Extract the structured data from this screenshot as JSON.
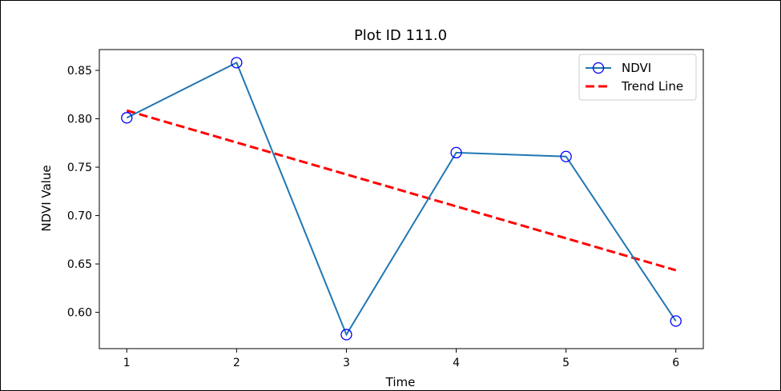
{
  "chart_data": {
    "type": "line",
    "title": "Plot ID 111.0",
    "xlabel": "Time",
    "ylabel": "NDVI Value",
    "x": [
      1,
      2,
      3,
      4,
      5,
      6
    ],
    "xlim": [
      0.75,
      6.25
    ],
    "ylim": [
      0.5625,
      0.8715
    ],
    "x_ticks": [
      1,
      2,
      3,
      4,
      5,
      6
    ],
    "y_ticks": [
      0.6,
      0.65,
      0.7,
      0.75,
      0.8,
      0.85
    ],
    "y_tick_labels": [
      "0.60",
      "0.65",
      "0.70",
      "0.75",
      "0.80",
      "0.85"
    ],
    "grid": false,
    "legend_position": "top-right",
    "series": [
      {
        "name": "NDVI",
        "values": [
          0.801,
          0.858,
          0.577,
          0.765,
          0.761,
          0.591
        ],
        "line_color": "#1f77b4",
        "marker_color": "#0000ff",
        "marker": "open-circle"
      },
      {
        "name": "Trend Line",
        "values": [
          0.8085,
          0.7755,
          0.7425,
          0.7095,
          0.6765,
          0.6435
        ],
        "line_color": "#ff0000",
        "line_style": "dashed"
      }
    ]
  }
}
